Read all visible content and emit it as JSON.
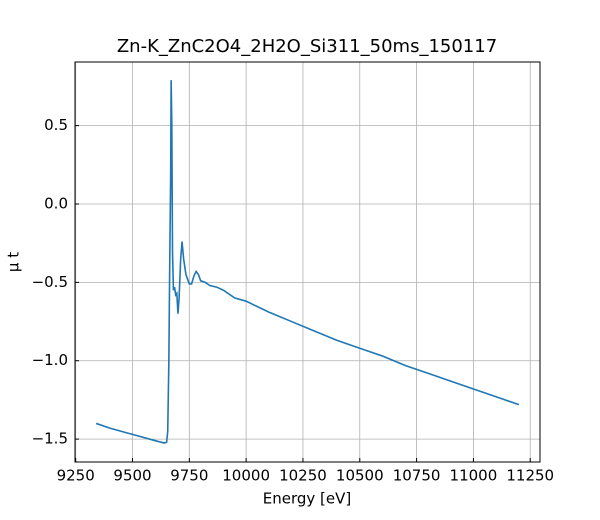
{
  "chart_data": {
    "type": "line",
    "title": "Zn-K_ZnC2O4_2H2O_Si311_50ms_150117",
    "x_label": "Energy [eV]",
    "y_label": "μ t",
    "grid": true,
    "xlim": [
      9247,
      11293
    ],
    "ylim": [
      -1.646,
      0.906
    ],
    "xticks": [
      9250,
      9500,
      9750,
      10000,
      10250,
      10500,
      10750,
      11000,
      11250
    ],
    "yticks": [
      {
        "value": -1.5,
        "label": "−1.5"
      },
      {
        "value": -1.0,
        "label": "−1.0"
      },
      {
        "value": -0.5,
        "label": "−0.5"
      },
      {
        "value": 0,
        "label": "0.0"
      },
      0.5
    ],
    "x": [
      9340,
      9400,
      9500,
      9600,
      9640,
      9650,
      9655,
      9660,
      9663,
      9668,
      9670,
      9673,
      9676,
      9680,
      9685,
      9690,
      9695,
      9700,
      9705,
      9712,
      9718,
      9725,
      9735,
      9750,
      9760,
      9770,
      9780,
      9790,
      9800,
      9820,
      9840,
      9870,
      9900,
      9950,
      10000,
      10100,
      10200,
      10300,
      10400,
      10500,
      10600,
      10700,
      10800,
      10900,
      11000,
      11100,
      11200
    ],
    "series": [
      {
        "name": "Zn-K",
        "color": "#1f77b4",
        "values": [
          -1.4,
          -1.43,
          -1.47,
          -1.51,
          -1.525,
          -1.52,
          -1.45,
          -1.0,
          -0.5,
          0.2,
          0.79,
          0.5,
          -0.3,
          -0.55,
          -0.53,
          -0.58,
          -0.57,
          -0.7,
          -0.6,
          -0.35,
          -0.24,
          -0.35,
          -0.45,
          -0.51,
          -0.51,
          -0.46,
          -0.43,
          -0.45,
          -0.49,
          -0.5,
          -0.52,
          -0.53,
          -0.55,
          -0.6,
          -0.62,
          -0.69,
          -0.75,
          -0.81,
          -0.87,
          -0.92,
          -0.97,
          -1.03,
          -1.08,
          -1.13,
          -1.18,
          -1.23,
          -1.28
        ]
      }
    ]
  }
}
